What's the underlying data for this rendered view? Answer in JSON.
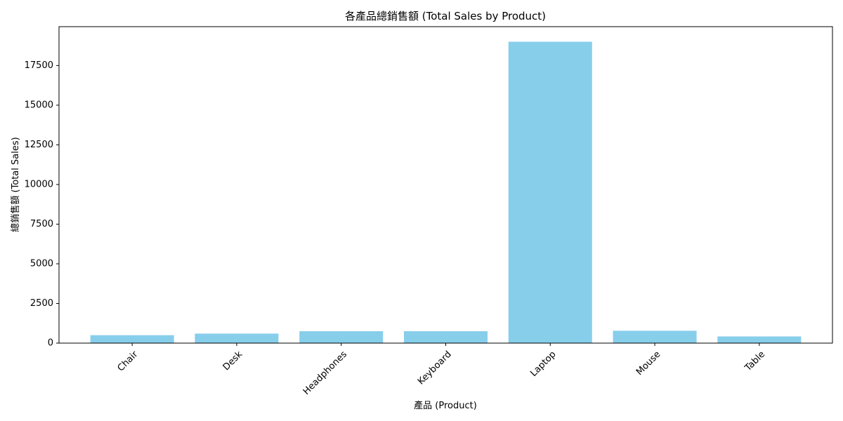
{
  "chart_data": {
    "type": "bar",
    "title": "各產品總銷售額 (Total Sales by Product)",
    "xlabel": "產品 (Product)",
    "ylabel": "總銷售額 (Total Sales)",
    "categories": [
      "Chair",
      "Desk",
      "Headphones",
      "Keyboard",
      "Laptop",
      "Mouse",
      "Table"
    ],
    "values": [
      500,
      600,
      750,
      750,
      19000,
      780,
      420
    ],
    "ylim": [
      0,
      19950
    ],
    "yticks": [
      0,
      2500,
      5000,
      7500,
      10000,
      12500,
      15000,
      17500
    ],
    "grid": false,
    "bar_color": "#87ceeb"
  }
}
